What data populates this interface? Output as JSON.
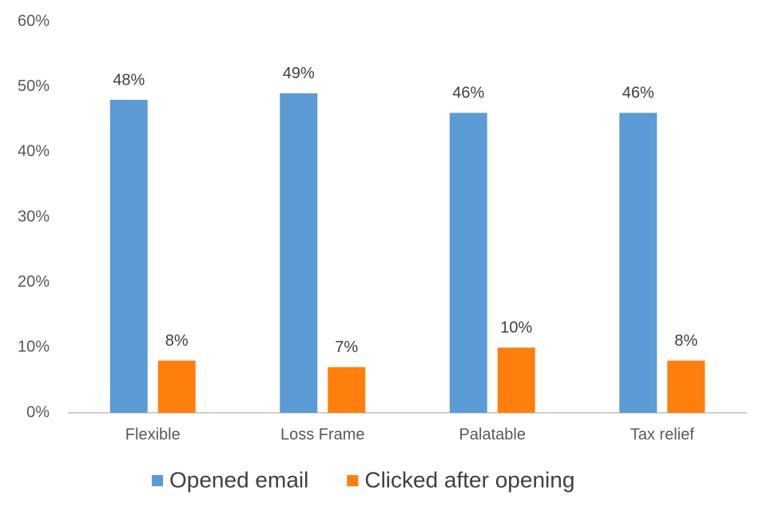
{
  "chart_data": {
    "type": "bar",
    "categories": [
      "Flexible",
      "Loss Frame",
      "Palatable",
      "Tax relief"
    ],
    "series": [
      {
        "name": "Opened email",
        "color": "#5b9bd5",
        "values": [
          48,
          49,
          46,
          46
        ],
        "value_labels": [
          "48%",
          "49%",
          "46%",
          "46%"
        ]
      },
      {
        "name": "Clicked after opening",
        "color": "#ff7f0e",
        "values": [
          8,
          7,
          10,
          8
        ],
        "value_labels": [
          "8%",
          "7%",
          "10%",
          "8%"
        ]
      }
    ],
    "ylim": [
      0,
      60
    ],
    "yticks": [
      {
        "value": 0,
        "label": "0%"
      },
      {
        "value": 10,
        "label": "10%"
      },
      {
        "value": 20,
        "label": "20%"
      },
      {
        "value": 30,
        "label": "30%"
      },
      {
        "value": 40,
        "label": "40%"
      },
      {
        "value": 50,
        "label": "50%"
      },
      {
        "value": 60,
        "label": "60%"
      }
    ],
    "grid": false,
    "legend": "bottom"
  }
}
